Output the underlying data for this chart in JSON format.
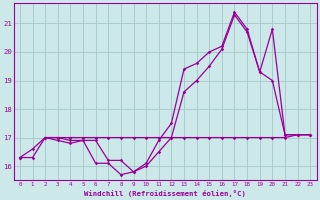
{
  "bg_color": "#cce8e8",
  "grid_color": "#aacccc",
  "line_color": "#990099",
  "x_ticks": [
    0,
    1,
    2,
    3,
    4,
    5,
    6,
    7,
    8,
    9,
    10,
    11,
    12,
    13,
    14,
    15,
    16,
    17,
    18,
    19,
    20,
    21,
    22,
    23
  ],
  "y_ticks": [
    16,
    17,
    18,
    19,
    20,
    21
  ],
  "ylim": [
    15.5,
    21.7
  ],
  "xlim": [
    -0.5,
    23.5
  ],
  "xlabel": "Windchill (Refroidissement éolien,°C)",
  "line1_x": [
    0,
    1,
    2,
    3,
    4,
    5,
    6,
    7,
    8,
    9,
    10,
    11,
    12,
    13,
    14,
    15,
    16,
    17,
    18,
    19,
    20,
    21,
    22,
    23
  ],
  "line1_y": [
    16.3,
    16.6,
    17.0,
    16.9,
    16.8,
    16.9,
    16.1,
    16.1,
    15.7,
    15.8,
    16.0,
    16.5,
    17.0,
    18.6,
    19.0,
    19.5,
    20.1,
    21.3,
    20.7,
    19.3,
    19.0,
    17.1,
    17.1,
    17.1
  ],
  "line2_x": [
    0,
    1,
    2,
    3,
    4,
    5,
    6,
    7,
    8,
    9,
    10,
    11,
    12,
    13,
    14,
    15,
    16,
    17,
    18,
    19,
    20,
    21,
    22,
    23
  ],
  "line2_y": [
    16.3,
    16.3,
    17.0,
    17.0,
    17.0,
    17.0,
    17.0,
    17.0,
    17.0,
    17.0,
    17.0,
    17.0,
    17.0,
    17.0,
    17.0,
    17.0,
    17.0,
    17.0,
    17.0,
    17.0,
    17.0,
    17.0,
    17.1,
    17.1
  ],
  "line3_x": [
    2,
    3,
    4,
    5,
    6,
    7,
    8,
    9,
    10,
    11,
    12,
    13,
    14,
    15,
    16,
    17,
    18,
    19,
    20,
    21,
    22,
    23
  ],
  "line3_y": [
    17.0,
    17.0,
    16.9,
    16.9,
    16.9,
    16.2,
    16.2,
    15.8,
    16.1,
    16.9,
    17.5,
    19.4,
    19.6,
    20.0,
    20.2,
    21.4,
    20.8,
    19.3,
    20.8,
    17.1,
    17.1,
    17.1
  ]
}
